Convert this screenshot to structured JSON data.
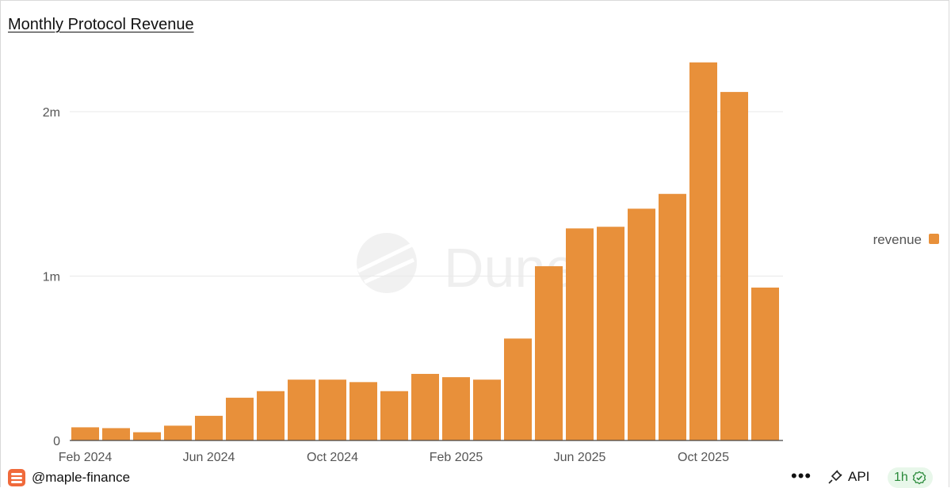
{
  "title": "Monthly Protocol Revenue",
  "watermark": "Dune",
  "colors": {
    "bar": "#E8903A",
    "grid": "#e9e9e9",
    "axis": "#444444",
    "text": "#555555"
  },
  "chart_data": {
    "type": "bar",
    "x": [
      "2024-02",
      "2024-03",
      "2024-04",
      "2024-05",
      "2024-06",
      "2024-07",
      "2024-08",
      "2024-09",
      "2024-10",
      "2024-11",
      "2024-12",
      "2025-01",
      "2025-02",
      "2025-03",
      "2025-04",
      "2025-05",
      "2025-06",
      "2025-07",
      "2025-08",
      "2025-09",
      "2025-10",
      "2025-11",
      "2025-12"
    ],
    "x_tick_labels": [
      "Feb 2024",
      "Jun 2024",
      "Oct 2024",
      "Feb 2025",
      "Jun 2025",
      "Oct 2025"
    ],
    "y_tick_labels": [
      "0",
      "1m",
      "2m"
    ],
    "y_ticks": [
      0,
      1000000,
      2000000
    ],
    "series": [
      {
        "name": "revenue",
        "values": [
          80000,
          75000,
          50000,
          90000,
          150000,
          260000,
          300000,
          370000,
          370000,
          355000,
          300000,
          405000,
          385000,
          370000,
          620000,
          1060000,
          1290000,
          1300000,
          1410000,
          1500000,
          2300000,
          2120000,
          930000
        ]
      }
    ],
    "ylim": [
      0,
      2300000
    ],
    "grid": true,
    "legend_position": "right"
  },
  "footer": {
    "handle": "@maple-finance",
    "more_label": "•••",
    "api_label": "API",
    "refresh_label": "1h"
  }
}
